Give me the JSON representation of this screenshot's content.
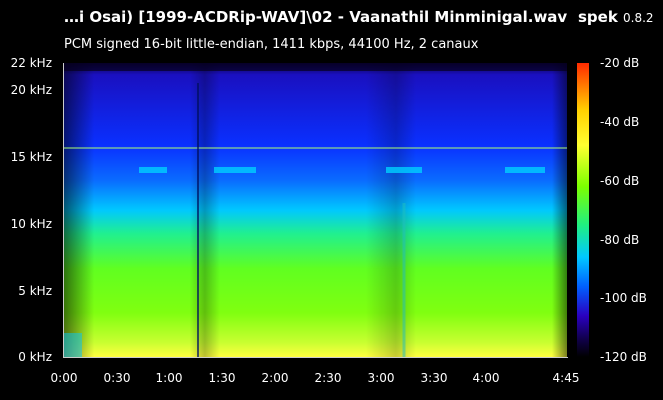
{
  "header": {
    "file_title": "…i Osai) [1999-ACDRip-WAV]\\02 - Vaanathil Minminigal.wav",
    "info": "PCM signed 16-bit little-endian, 1411 kbps, 44100 Hz, 2 canaux",
    "app_name": "spek",
    "app_version": "0.8.2"
  },
  "freq_axis": [
    "22 kHz",
    "20 kHz",
    "15 kHz",
    "10 kHz",
    "5 kHz",
    "0 kHz"
  ],
  "time_axis": [
    "0:00",
    "0:30",
    "1:00",
    "1:30",
    "2:00",
    "2:30",
    "3:00",
    "3:30",
    "4:00",
    "4:45"
  ],
  "db_scale": [
    "-20 dB",
    "-40 dB",
    "-60 dB",
    "-80 dB",
    "-100 dB",
    "-120 dB"
  ],
  "colors": {
    "background": "#000000",
    "cutoff_line": "#b0ff70"
  }
}
